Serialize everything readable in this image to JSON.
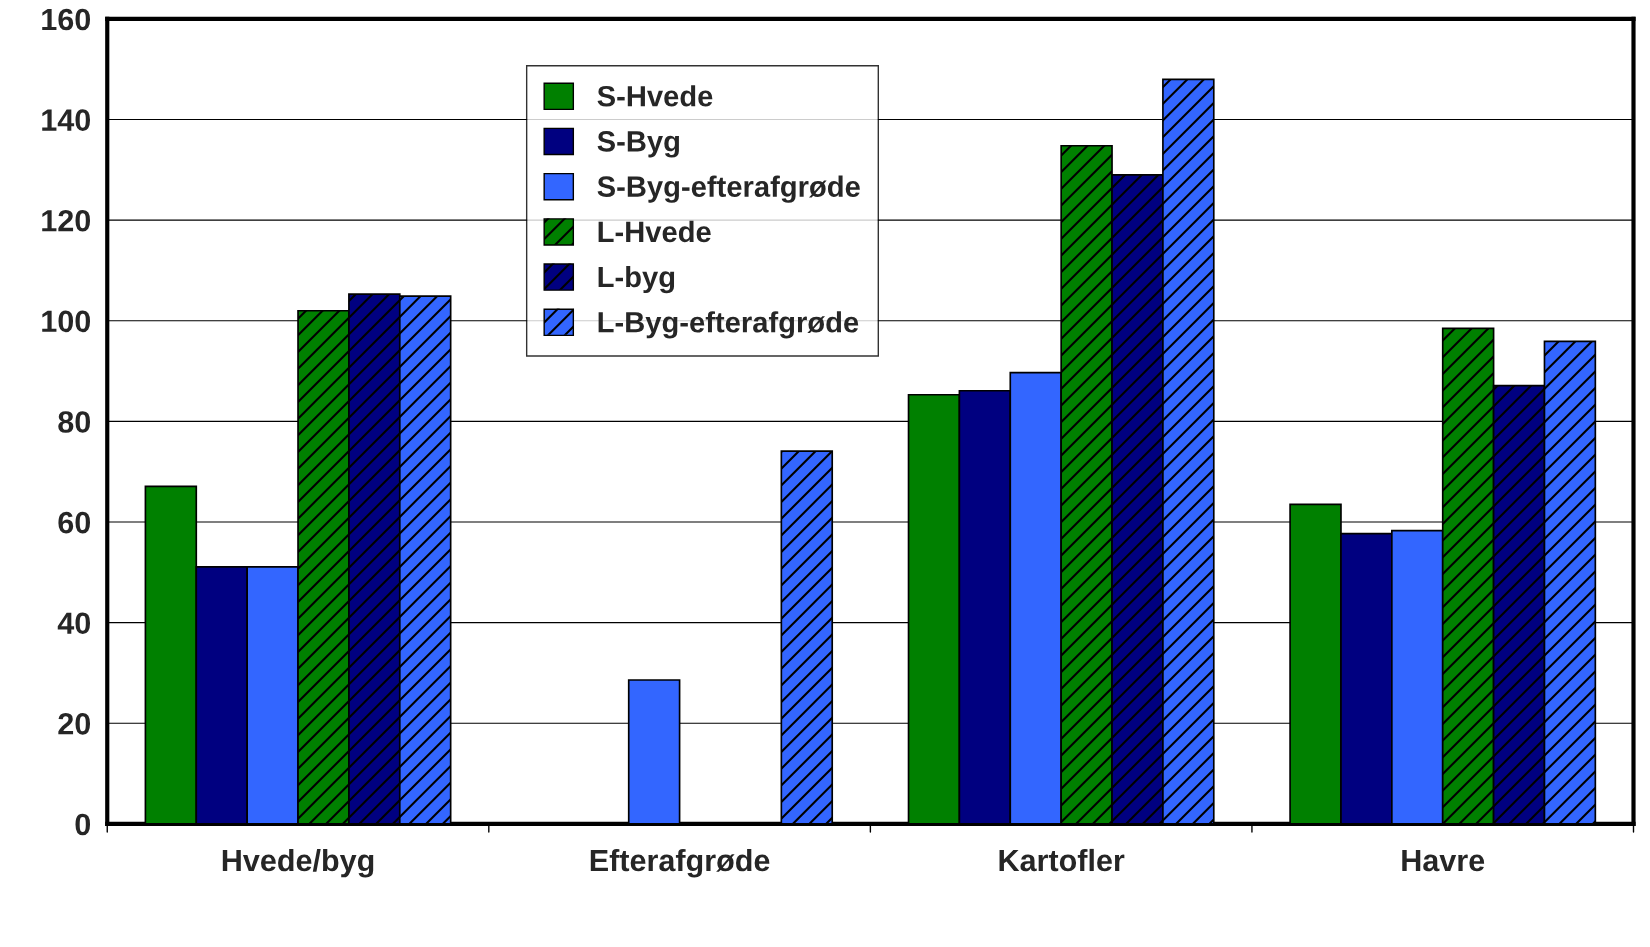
{
  "chart_data": {
    "type": "bar",
    "categories": [
      "Hvede/byg",
      "Efterafgrøde",
      "Kartofler",
      "Havre"
    ],
    "series": [
      {
        "name": "S-Hvede",
        "color": "#008000",
        "values": [
          67.1,
          null,
          85.3,
          63.5
        ]
      },
      {
        "name": "S-Byg",
        "color": "#000080",
        "values": [
          51.1,
          null,
          86.1,
          57.7
        ]
      },
      {
        "name": "S-Byg-efterafgrøde",
        "color": "#3366ff",
        "values": [
          51.1,
          28.6,
          89.7,
          58.3
        ]
      },
      {
        "name": "L-Hvede",
        "color": "#008000",
        "values": [
          102.0,
          null,
          134.8,
          98.5
        ]
      },
      {
        "name": "L-byg",
        "color": "#000080",
        "values": [
          105.3,
          null,
          129.0,
          87.1
        ]
      },
      {
        "name": "L-Byg-efterafgrøde",
        "color": "#3366ff",
        "values": [
          104.9,
          74.1,
          148.0,
          95.9
        ]
      }
    ],
    "ylim": [
      0,
      160
    ],
    "yticks": [
      0,
      20,
      40,
      60,
      80,
      100,
      120,
      140,
      160
    ],
    "grid": "y",
    "legend": "top"
  }
}
